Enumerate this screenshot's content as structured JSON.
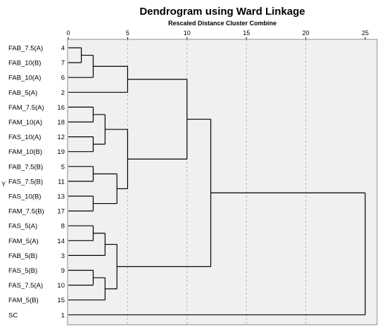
{
  "chart_data": {
    "type": "dendrogram",
    "title": "Dendrogram using Ward Linkage",
    "subtitle": "Rescaled Distance Cluster Combine",
    "ylabel": "Y",
    "xlim": [
      0,
      25
    ],
    "xticks": [
      0,
      5,
      10,
      15,
      20,
      25
    ],
    "grid": true,
    "leaves": [
      {
        "label": "FAB_7.5(A)",
        "case": "4"
      },
      {
        "label": "FAB_10(B)",
        "case": "7"
      },
      {
        "label": "FAB_10(A)",
        "case": "6"
      },
      {
        "label": "FAB_5(A)",
        "case": "2"
      },
      {
        "label": "FAM_7.5(A)",
        "case": "16"
      },
      {
        "label": "FAM_10(A)",
        "case": "18"
      },
      {
        "label": "FAS_10(A)",
        "case": "12"
      },
      {
        "label": "FAM_10(B)",
        "case": "19"
      },
      {
        "label": "FAB_7.5(B)",
        "case": "5"
      },
      {
        "label": "FAS_7.5(B)",
        "case": "11"
      },
      {
        "label": "FAS_10(B)",
        "case": "13"
      },
      {
        "label": "FAM_7.5(B)",
        "case": "17"
      },
      {
        "label": "FAS_5(A)",
        "case": "8"
      },
      {
        "label": "FAM_5(A)",
        "case": "14"
      },
      {
        "label": "FAB_5(B)",
        "case": "3"
      },
      {
        "label": "FAS_5(B)",
        "case": "9"
      },
      {
        "label": "FAS_7.5(A)",
        "case": "10"
      },
      {
        "label": "FAM_5(B)",
        "case": "15"
      },
      {
        "label": "SC",
        "case": "1"
      }
    ],
    "merges": [
      {
        "id": "m1",
        "children": [
          "L0",
          "L1"
        ],
        "distance": 1.1
      },
      {
        "id": "m2",
        "children": [
          "m1",
          "L2"
        ],
        "distance": 2.1
      },
      {
        "id": "m3",
        "children": [
          "m2",
          "L3"
        ],
        "distance": 5.0
      },
      {
        "id": "m4",
        "children": [
          "L4",
          "L5"
        ],
        "distance": 2.1
      },
      {
        "id": "m5",
        "children": [
          "L6",
          "L7"
        ],
        "distance": 2.1
      },
      {
        "id": "m6",
        "children": [
          "m4",
          "m5"
        ],
        "distance": 3.1
      },
      {
        "id": "m7",
        "children": [
          "L8",
          "L9"
        ],
        "distance": 2.1
      },
      {
        "id": "m8",
        "children": [
          "L10",
          "L11"
        ],
        "distance": 2.1
      },
      {
        "id": "m9",
        "children": [
          "m7",
          "m8"
        ],
        "distance": 4.1
      },
      {
        "id": "m10",
        "children": [
          "m6",
          "m9"
        ],
        "distance": 5.0
      },
      {
        "id": "m11",
        "children": [
          "m3",
          "m10"
        ],
        "distance": 10.0
      },
      {
        "id": "m12",
        "children": [
          "L12",
          "L13"
        ],
        "distance": 2.1
      },
      {
        "id": "m13",
        "children": [
          "m12",
          "L14"
        ],
        "distance": 3.1
      },
      {
        "id": "m14",
        "children": [
          "L15",
          "L16"
        ],
        "distance": 2.1
      },
      {
        "id": "m15",
        "children": [
          "m14",
          "L17"
        ],
        "distance": 3.1
      },
      {
        "id": "m16",
        "children": [
          "m13",
          "m15"
        ],
        "distance": 4.1
      },
      {
        "id": "m17",
        "children": [
          "m11",
          "m16"
        ],
        "distance": 12.0
      },
      {
        "id": "m18",
        "children": [
          "m17",
          "L18"
        ],
        "distance": 25.0
      }
    ]
  }
}
